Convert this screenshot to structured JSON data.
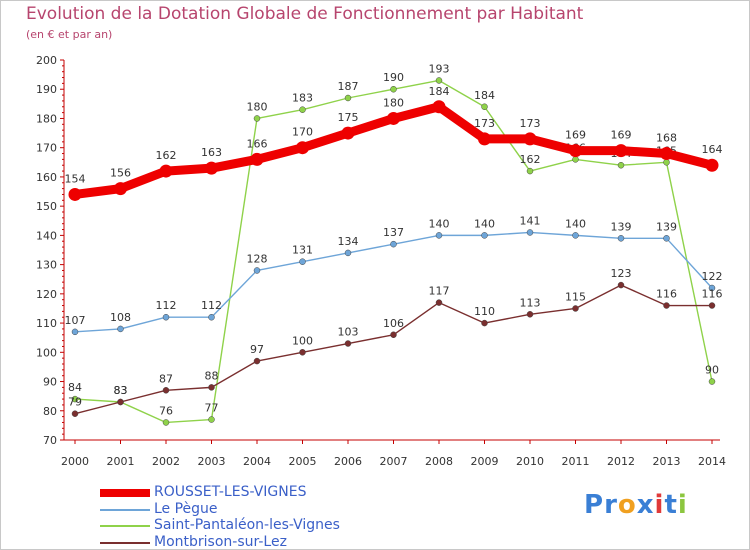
{
  "title": "Evolution de la Dotation Globale de Fonctionnement par Habitant",
  "subtitle": "(en € et par an)",
  "logo": {
    "letters": [
      "P",
      "r",
      "o",
      "x",
      "i",
      "t",
      "i"
    ],
    "colors": [
      "#3a7fd5",
      "#3a7fd5",
      "#f0a020",
      "#3a7fd5",
      "#e03a3a",
      "#3a7fd5",
      "#8cc63f"
    ]
  },
  "chart_data": {
    "type": "line",
    "title": "Evolution de la Dotation Globale de Fonctionnement par Habitant",
    "subtitle": "(en € et par an)",
    "xlabel": "",
    "ylabel": "",
    "ylim": [
      70,
      200
    ],
    "yticks": [
      70,
      80,
      90,
      100,
      110,
      120,
      130,
      140,
      150,
      160,
      170,
      180,
      190,
      200
    ],
    "grid": false,
    "legend_position": "bottom-left",
    "categories": [
      "2000",
      "2001",
      "2002",
      "2003",
      "2004",
      "2005",
      "2006",
      "2007",
      "2008",
      "2009",
      "2010",
      "2011",
      "2012",
      "2013",
      "2014"
    ],
    "series": [
      {
        "name": "Saint-Pantaléon-les-Vignes",
        "color": "#8fd24a",
        "values": [
          84,
          83,
          76,
          77,
          180,
          183,
          187,
          190,
          193,
          184,
          162,
          166,
          164,
          165,
          90
        ],
        "labels": [
          "84",
          "83",
          "76",
          "77",
          "180",
          "183",
          "187",
          "190",
          "193",
          "184",
          "162",
          "166",
          "164",
          "165",
          "90"
        ]
      },
      {
        "name": "Le Pègue",
        "color": "#6ea5d8",
        "values": [
          107,
          108,
          112,
          112,
          128,
          131,
          134,
          137,
          140,
          140,
          141,
          140,
          139,
          139,
          122
        ],
        "labels": [
          "107",
          "108",
          "112",
          "112",
          "128",
          "131",
          "134",
          "137",
          "140",
          "140",
          "141",
          "140",
          "139",
          "139",
          "122"
        ]
      },
      {
        "name": "Montbrison-sur-Lez",
        "color": "#7a2f2f",
        "values": [
          79,
          83,
          87,
          88,
          97,
          100,
          103,
          106,
          117,
          110,
          113,
          115,
          123,
          116,
          116
        ],
        "labels": [
          "79",
          "83",
          "87",
          "88",
          "97",
          "100",
          "103",
          "106",
          "117",
          "110",
          "113",
          "115",
          "123",
          "116",
          "116"
        ]
      },
      {
        "name": "ROUSSET-LES-VIGNES",
        "color": "#ee0000",
        "values": [
          154,
          156,
          162,
          163,
          166,
          170,
          175,
          180,
          184,
          173,
          173,
          169,
          169,
          168,
          164
        ],
        "labels": [
          "154",
          "156",
          "162",
          "163",
          "166",
          "170",
          "175",
          "180",
          "184",
          "173",
          "173",
          "169",
          "169",
          "168",
          "164"
        ]
      }
    ],
    "legend": [
      {
        "name": "ROUSSET-LES-VIGNES",
        "color": "#ee0000",
        "text_color": "#3a5fc8"
      },
      {
        "name": "Le Pègue",
        "color": "#6ea5d8",
        "text_color": "#3a5fc8"
      },
      {
        "name": "Saint-Pantaléon-les-Vignes",
        "color": "#8fd24a",
        "text_color": "#3a5fc8"
      },
      {
        "name": "Montbrison-sur-Lez",
        "color": "#7a2f2f",
        "text_color": "#3a5fc8"
      }
    ]
  }
}
